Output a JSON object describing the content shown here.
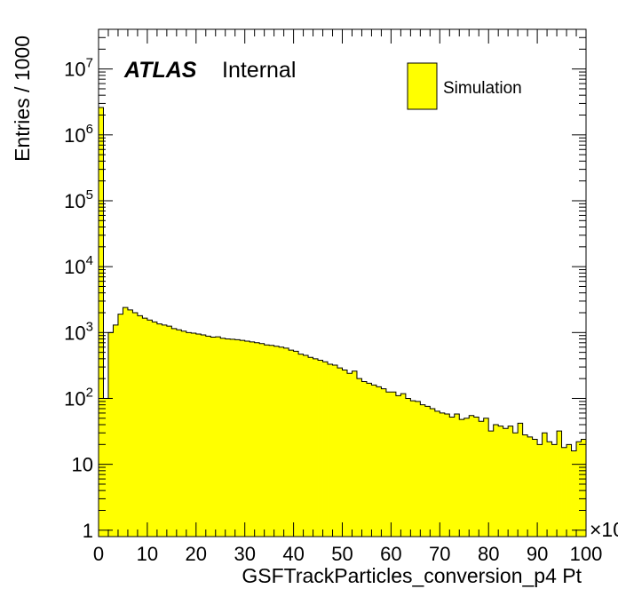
{
  "chart_data": {
    "type": "bar",
    "title": "",
    "xlabel": "GSFTrackParticles_conversion_p4 Pt",
    "ylabel": "Entries / 1000",
    "x_unit_multiplier_label": "×10",
    "xlim": [
      0,
      100
    ],
    "ylim": [
      0.8,
      40000000
    ],
    "yscale": "log",
    "grid": false,
    "legend_position": "top-right",
    "x_ticks": [
      "0",
      "10",
      "20",
      "30",
      "40",
      "50",
      "60",
      "70",
      "80",
      "90",
      "100"
    ],
    "y_ticks": [
      {
        "base": "1",
        "exp": ""
      },
      {
        "base": "10",
        "exp": ""
      },
      {
        "base": "10",
        "exp": "2"
      },
      {
        "base": "10",
        "exp": "3"
      },
      {
        "base": "10",
        "exp": "4"
      },
      {
        "base": "10",
        "exp": "5"
      },
      {
        "base": "10",
        "exp": "6"
      },
      {
        "base": "10",
        "exp": "7"
      }
    ],
    "annotation": {
      "bold": "ATLAS",
      "text": "Internal"
    },
    "series": [
      {
        "name": "Simulation",
        "color": "#ffff00",
        "bin_width": 1,
        "x_start": 0,
        "values": [
          2600000,
          100,
          1000,
          1300,
          1900,
          2400,
          2200,
          2000,
          1800,
          1650,
          1550,
          1450,
          1350,
          1300,
          1250,
          1150,
          1100,
          1050,
          1000,
          980,
          950,
          920,
          880,
          850,
          860,
          820,
          800,
          790,
          780,
          760,
          740,
          720,
          700,
          680,
          650,
          640,
          620,
          600,
          580,
          540,
          520,
          470,
          450,
          420,
          400,
          380,
          360,
          330,
          320,
          290,
          270,
          240,
          260,
          200,
          180,
          170,
          160,
          150,
          140,
          125,
          125,
          110,
          118,
          100,
          92,
          90,
          80,
          76,
          70,
          64,
          60,
          58,
          52,
          58,
          48,
          50,
          55,
          52,
          45,
          50,
          32,
          40,
          38,
          35,
          38,
          30,
          42,
          28,
          26,
          24,
          20,
          30,
          22,
          20,
          32,
          18,
          20,
          16,
          22,
          24
        ]
      }
    ]
  }
}
